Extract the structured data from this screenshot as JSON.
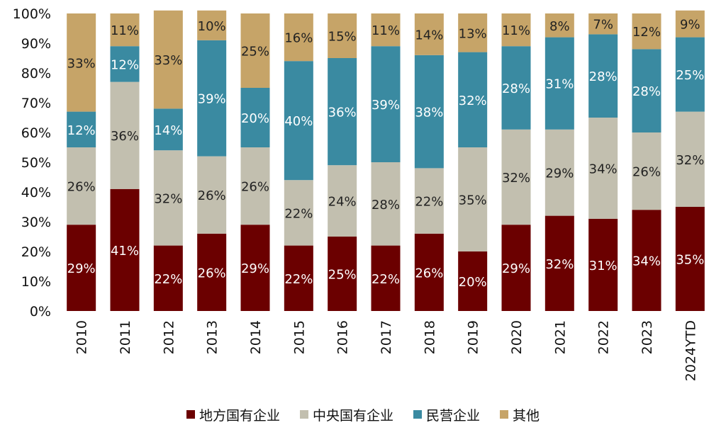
{
  "chart_data": {
    "type": "bar",
    "stacked": true,
    "percent": true,
    "categories": [
      "2010",
      "2011",
      "2012",
      "2013",
      "2014",
      "2015",
      "2016",
      "2017",
      "2018",
      "2019",
      "2020",
      "2021",
      "2022",
      "2023",
      "2024YTD"
    ],
    "series": [
      {
        "name": "地方国有企业",
        "color": "#6b0000",
        "label_color": "#ffffff",
        "values": [
          29,
          41,
          22,
          26,
          29,
          22,
          25,
          22,
          26,
          20,
          29,
          32,
          31,
          34,
          35
        ]
      },
      {
        "name": "中央国有企业",
        "color": "#c2bfaf",
        "label_color": "#222222",
        "values": [
          26,
          36,
          32,
          26,
          26,
          22,
          24,
          28,
          22,
          35,
          32,
          29,
          34,
          26,
          32
        ]
      },
      {
        "name": "民营企业",
        "color": "#3a8aa1",
        "label_color": "#ffffff",
        "values": [
          12,
          12,
          14,
          39,
          20,
          40,
          36,
          39,
          38,
          32,
          28,
          31,
          28,
          28,
          25
        ]
      },
      {
        "name": "其他",
        "color": "#c6a468",
        "label_color": "#222222",
        "values": [
          33,
          11,
          33,
          10,
          25,
          16,
          15,
          11,
          14,
          13,
          11,
          8,
          7,
          12,
          9
        ]
      }
    ],
    "yticks": [
      "0%",
      "10%",
      "20%",
      "30%",
      "40%",
      "50%",
      "60%",
      "70%",
      "80%",
      "90%",
      "100%"
    ],
    "ylim": [
      0,
      100
    ],
    "grid": false,
    "legend_position": "bottom"
  }
}
